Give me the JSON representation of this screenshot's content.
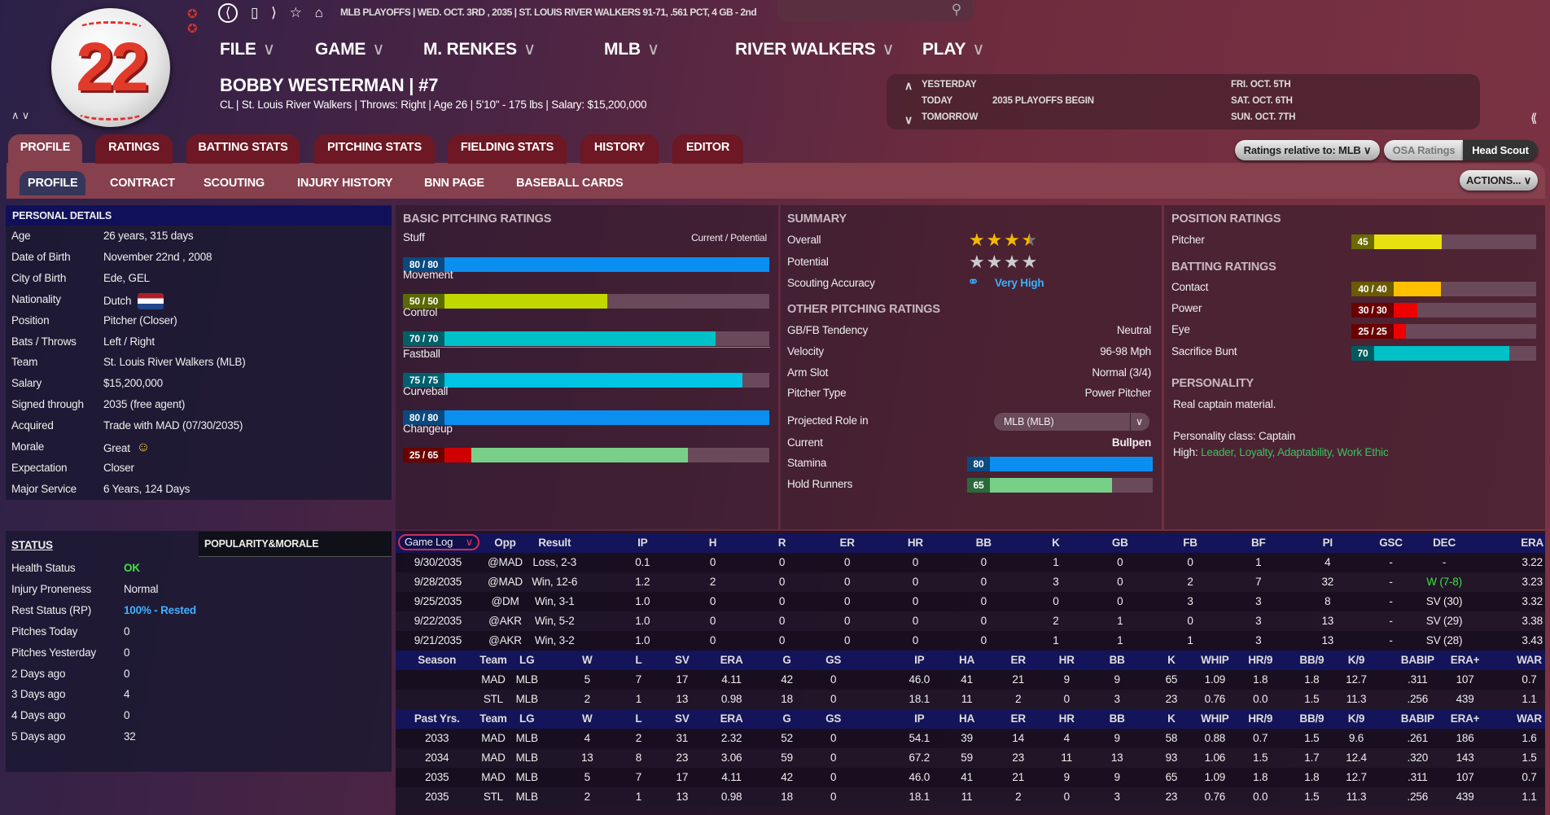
{
  "logo_number": "22",
  "top_bar": {
    "info": "MLB PLAYOFFS  |  WED. OCT. 3RD , 2035  |  ST. LOUIS RIVER WALKERS   91-71, .561 PCT, 4 GB - 2nd",
    "icons": [
      "back-icon",
      "bookmark-icon",
      "forward-icon",
      "star-icon",
      "home-icon",
      "search-icon"
    ]
  },
  "menu": [
    {
      "label": "FILE"
    },
    {
      "label": "GAME"
    },
    {
      "label": "M. RENKES"
    },
    {
      "label": "MLB"
    },
    {
      "label": "RIVER WALKERS"
    },
    {
      "label": "PLAY"
    }
  ],
  "player": {
    "name": "BOBBY WESTERMAN  |  #7",
    "subline": "CL | St. Louis River Walkers  |  Throws: Right  |  Age 26  |  5'10\" - 175 lbs  |  Salary: $15,200,000"
  },
  "calendar": {
    "yesterday": "YESTERDAY",
    "today": "TODAY",
    "tomorrow": "TOMORROW",
    "today_event": "2035 PLAYOFFS BEGIN",
    "dates": [
      "FRI. OCT. 5TH",
      "SAT. OCT. 6TH",
      "SUN. OCT. 7TH"
    ]
  },
  "tabs": [
    "PROFILE",
    "RATINGS",
    "BATTING STATS",
    "PITCHING STATS",
    "FIELDING STATS",
    "HISTORY",
    "EDITOR"
  ],
  "subtabs": [
    "PROFILE",
    "CONTRACT",
    "SCOUTING",
    "INJURY HISTORY",
    "BNN PAGE",
    "BASEBALL CARDS"
  ],
  "controls": {
    "ratings_relative": "Ratings relative to: MLB",
    "osa": "OSA Ratings",
    "head_scout": "Head Scout",
    "actions": "ACTIONS..."
  },
  "personal": {
    "title": "PERSONAL DETAILS",
    "rows": [
      {
        "label": "Age",
        "value": "26 years, 315 days"
      },
      {
        "label": "Date of Birth",
        "value": "November 22nd , 2008"
      },
      {
        "label": "City of Birth",
        "value": "Ede, GEL"
      },
      {
        "label": "Nationality",
        "value": "Dutch"
      },
      {
        "label": "Position",
        "value": "Pitcher (Closer)"
      },
      {
        "label": "Bats / Throws",
        "value": "Left / Right"
      },
      {
        "label": "Team",
        "value": "St. Louis River Walkers (MLB)"
      },
      {
        "label": "Salary",
        "value": "$15,200,000"
      },
      {
        "label": "Signed through",
        "value": "2035 (free agent)"
      },
      {
        "label": "Acquired",
        "value": "Trade with MAD (07/30/2035)"
      },
      {
        "label": "Morale",
        "value": "Great"
      },
      {
        "label": "Expectation",
        "value": "Closer"
      },
      {
        "label": "Major Service",
        "value": "6 Years, 124 Days"
      }
    ]
  },
  "status": {
    "title": "STATUS",
    "popularity_tab": "POPULARITY&MORALE",
    "rows": [
      {
        "label": "Health Status",
        "value": "OK",
        "color": "#40e040"
      },
      {
        "label": "Injury Proneness",
        "value": "Normal"
      },
      {
        "label": "Rest Status (RP)",
        "value": "100% - Rested",
        "color": "#40b0ff"
      },
      {
        "label": "Pitches Today",
        "value": "0"
      },
      {
        "label": "Pitches Yesterday",
        "value": "0"
      },
      {
        "label": "2 Days ago",
        "value": "0"
      },
      {
        "label": "3 Days ago",
        "value": "4"
      },
      {
        "label": "4 Days ago",
        "value": "0"
      },
      {
        "label": "5 Days ago",
        "value": "32"
      }
    ]
  },
  "basic_pitching": {
    "title": "BASIC PITCHING RATINGS",
    "legend": "Current / Potential",
    "ratings": [
      {
        "label": "Stuff",
        "text": "80 / 80",
        "current": 80,
        "potential": 80,
        "color": "#0a8ff0",
        "labcolor": "#0a4a80"
      },
      {
        "label": "Movement",
        "text": "50 / 50",
        "current": 50,
        "potential": 50,
        "color": "#c0d800",
        "labcolor": "#5a6a00"
      },
      {
        "label": "Control",
        "text": "70 / 70",
        "current": 70,
        "potential": 70,
        "color": "#00c0c8",
        "labcolor": "#006068"
      },
      {
        "label": "Fastball",
        "text": "75 / 75",
        "current": 75,
        "potential": 75,
        "color": "#00c4e4",
        "labcolor": "#006070"
      },
      {
        "label": "Curveball",
        "text": "80 / 80",
        "current": 80,
        "potential": 80,
        "color": "#0a8ff0",
        "labcolor": "#0a4a80"
      },
      {
        "label": "Changeup",
        "text": "25 / 65",
        "current": 25,
        "potential": 65,
        "color": "#d00000",
        "potcolor": "#78d088",
        "labcolor": "#6a0000"
      }
    ]
  },
  "summary": {
    "title": "SUMMARY",
    "overall_label": "Overall",
    "overall_stars": 3.5,
    "potential_label": "Potential",
    "potential_stars": 4,
    "scouting_label": "Scouting Accuracy",
    "scouting_value": "Very High"
  },
  "other_pitching": {
    "title": "OTHER PITCHING RATINGS",
    "rows": [
      {
        "label": "GB/FB Tendency",
        "value": "Neutral"
      },
      {
        "label": "Velocity",
        "value": "96-98 Mph"
      },
      {
        "label": "Arm Slot",
        "value": "Normal (3/4)"
      },
      {
        "label": "Pitcher Type",
        "value": "Power Pitcher"
      }
    ],
    "projected_label": "Projected Role in",
    "projected_select": "MLB (MLB)",
    "current_label": "Current",
    "current_value": "Bullpen",
    "bars": [
      {
        "label": "Stamina",
        "text": "80",
        "value": 80,
        "color": "#0a8ff0",
        "labcolor": "#0a4a80"
      },
      {
        "label": "Hold Runners",
        "text": "65",
        "value": 65,
        "color": "#78d088",
        "labcolor": "#2a6a3a"
      }
    ]
  },
  "position_ratings": {
    "title": "POSITION RATINGS",
    "rows": [
      {
        "label": "Pitcher",
        "text": "45",
        "value": 45,
        "color": "#e8e010",
        "labcolor": "#6a6a00"
      }
    ]
  },
  "batting_ratings": {
    "title": "BATTING RATINGS",
    "rows": [
      {
        "label": "Contact",
        "text": "40 / 40",
        "value": 40,
        "color": "#ffc000",
        "labcolor": "#6a5a00"
      },
      {
        "label": "Power",
        "text": "30 / 30",
        "value": 30,
        "color": "#ee0000",
        "labcolor": "#6a0000"
      },
      {
        "label": "Eye",
        "text": "25 / 25",
        "value": 25,
        "color": "#ee0000",
        "labcolor": "#6a0000"
      },
      {
        "label": "Sacrifice Bunt",
        "text": "70",
        "value": 70,
        "color": "#00c0c8",
        "labcolor": "#005a60"
      }
    ]
  },
  "personality": {
    "title": "PERSONALITY",
    "description": "Real captain material.",
    "class": "Personality class: Captain",
    "high_label": "High:",
    "high_traits": "Leader, Loyalty, Adaptability, Work Ethic"
  },
  "game_log": {
    "selector": "Game Log",
    "headers": [
      "Opp",
      "Result",
      "IP",
      "H",
      "R",
      "ER",
      "HR",
      "BB",
      "K",
      "GB",
      "FB",
      "BF",
      "PI",
      "GSC",
      "DEC",
      "ERA"
    ],
    "rows": [
      [
        "9/30/2035",
        "@MAD",
        "Loss, 2-3",
        "0.1",
        "0",
        "0",
        "0",
        "0",
        "0",
        "1",
        "0",
        "0",
        "1",
        "4",
        "-",
        "-",
        "3.22"
      ],
      [
        "9/28/2035",
        "@MAD",
        "Win, 12-6",
        "1.2",
        "2",
        "0",
        "0",
        "0",
        "0",
        "3",
        "0",
        "2",
        "7",
        "32",
        "-",
        "W (7-8)",
        "3.23"
      ],
      [
        "9/25/2035",
        "@DM",
        "Win, 3-1",
        "1.0",
        "0",
        "0",
        "0",
        "0",
        "0",
        "0",
        "0",
        "3",
        "3",
        "8",
        "-",
        "SV (30)",
        "3.32"
      ],
      [
        "9/22/2035",
        "@AKR",
        "Win, 5-2",
        "1.0",
        "0",
        "0",
        "0",
        "0",
        "0",
        "2",
        "1",
        "0",
        "3",
        "13",
        "-",
        "SV (29)",
        "3.38"
      ],
      [
        "9/21/2035",
        "@AKR",
        "Win, 3-2",
        "1.0",
        "0",
        "0",
        "0",
        "0",
        "0",
        "1",
        "1",
        "1",
        "3",
        "13",
        "-",
        "SV (28)",
        "3.43"
      ]
    ]
  },
  "season_stats": {
    "headers": [
      "Season",
      "Team",
      "LG",
      "W",
      "L",
      "SV",
      "ERA",
      "G",
      "GS",
      "IP",
      "HA",
      "ER",
      "HR",
      "BB",
      "K",
      "WHIP",
      "HR/9",
      "BB/9",
      "K/9",
      "BABIP",
      "ERA+",
      "WAR"
    ],
    "rows": [
      [
        "",
        "MAD",
        "MLB",
        "5",
        "7",
        "17",
        "4.11",
        "42",
        "0",
        "46.0",
        "41",
        "21",
        "9",
        "9",
        "65",
        "1.09",
        "1.8",
        "1.8",
        "12.7",
        ".311",
        "107",
        "0.7"
      ],
      [
        "",
        "STL",
        "MLB",
        "2",
        "1",
        "13",
        "0.98",
        "18",
        "0",
        "18.1",
        "11",
        "2",
        "0",
        "3",
        "23",
        "0.76",
        "0.0",
        "1.5",
        "11.3",
        ".256",
        "439",
        "1.1"
      ]
    ]
  },
  "past_stats": {
    "headers": [
      "Past Yrs.",
      "Team",
      "LG",
      "W",
      "L",
      "SV",
      "ERA",
      "G",
      "GS",
      "IP",
      "HA",
      "ER",
      "HR",
      "BB",
      "K",
      "WHIP",
      "HR/9",
      "BB/9",
      "K/9",
      "BABIP",
      "ERA+",
      "WAR"
    ],
    "rows": [
      [
        "2033",
        "MAD",
        "MLB",
        "4",
        "2",
        "31",
        "2.32",
        "52",
        "0",
        "54.1",
        "39",
        "14",
        "4",
        "9",
        "58",
        "0.88",
        "0.7",
        "1.5",
        "9.6",
        ".261",
        "186",
        "1.6"
      ],
      [
        "2034",
        "MAD",
        "MLB",
        "13",
        "8",
        "23",
        "3.06",
        "59",
        "0",
        "67.2",
        "59",
        "23",
        "11",
        "13",
        "93",
        "1.06",
        "1.5",
        "1.7",
        "12.4",
        ".320",
        "143",
        "1.5"
      ],
      [
        "2035",
        "MAD",
        "MLB",
        "5",
        "7",
        "17",
        "4.11",
        "42",
        "0",
        "46.0",
        "41",
        "21",
        "9",
        "9",
        "65",
        "1.09",
        "1.8",
        "1.8",
        "12.7",
        ".311",
        "107",
        "0.7"
      ],
      [
        "2035",
        "STL",
        "MLB",
        "2",
        "1",
        "13",
        "0.98",
        "18",
        "0",
        "18.1",
        "11",
        "2",
        "0",
        "3",
        "23",
        "0.76",
        "0.0",
        "1.5",
        "11.3",
        ".256",
        "439",
        "1.1"
      ]
    ]
  }
}
